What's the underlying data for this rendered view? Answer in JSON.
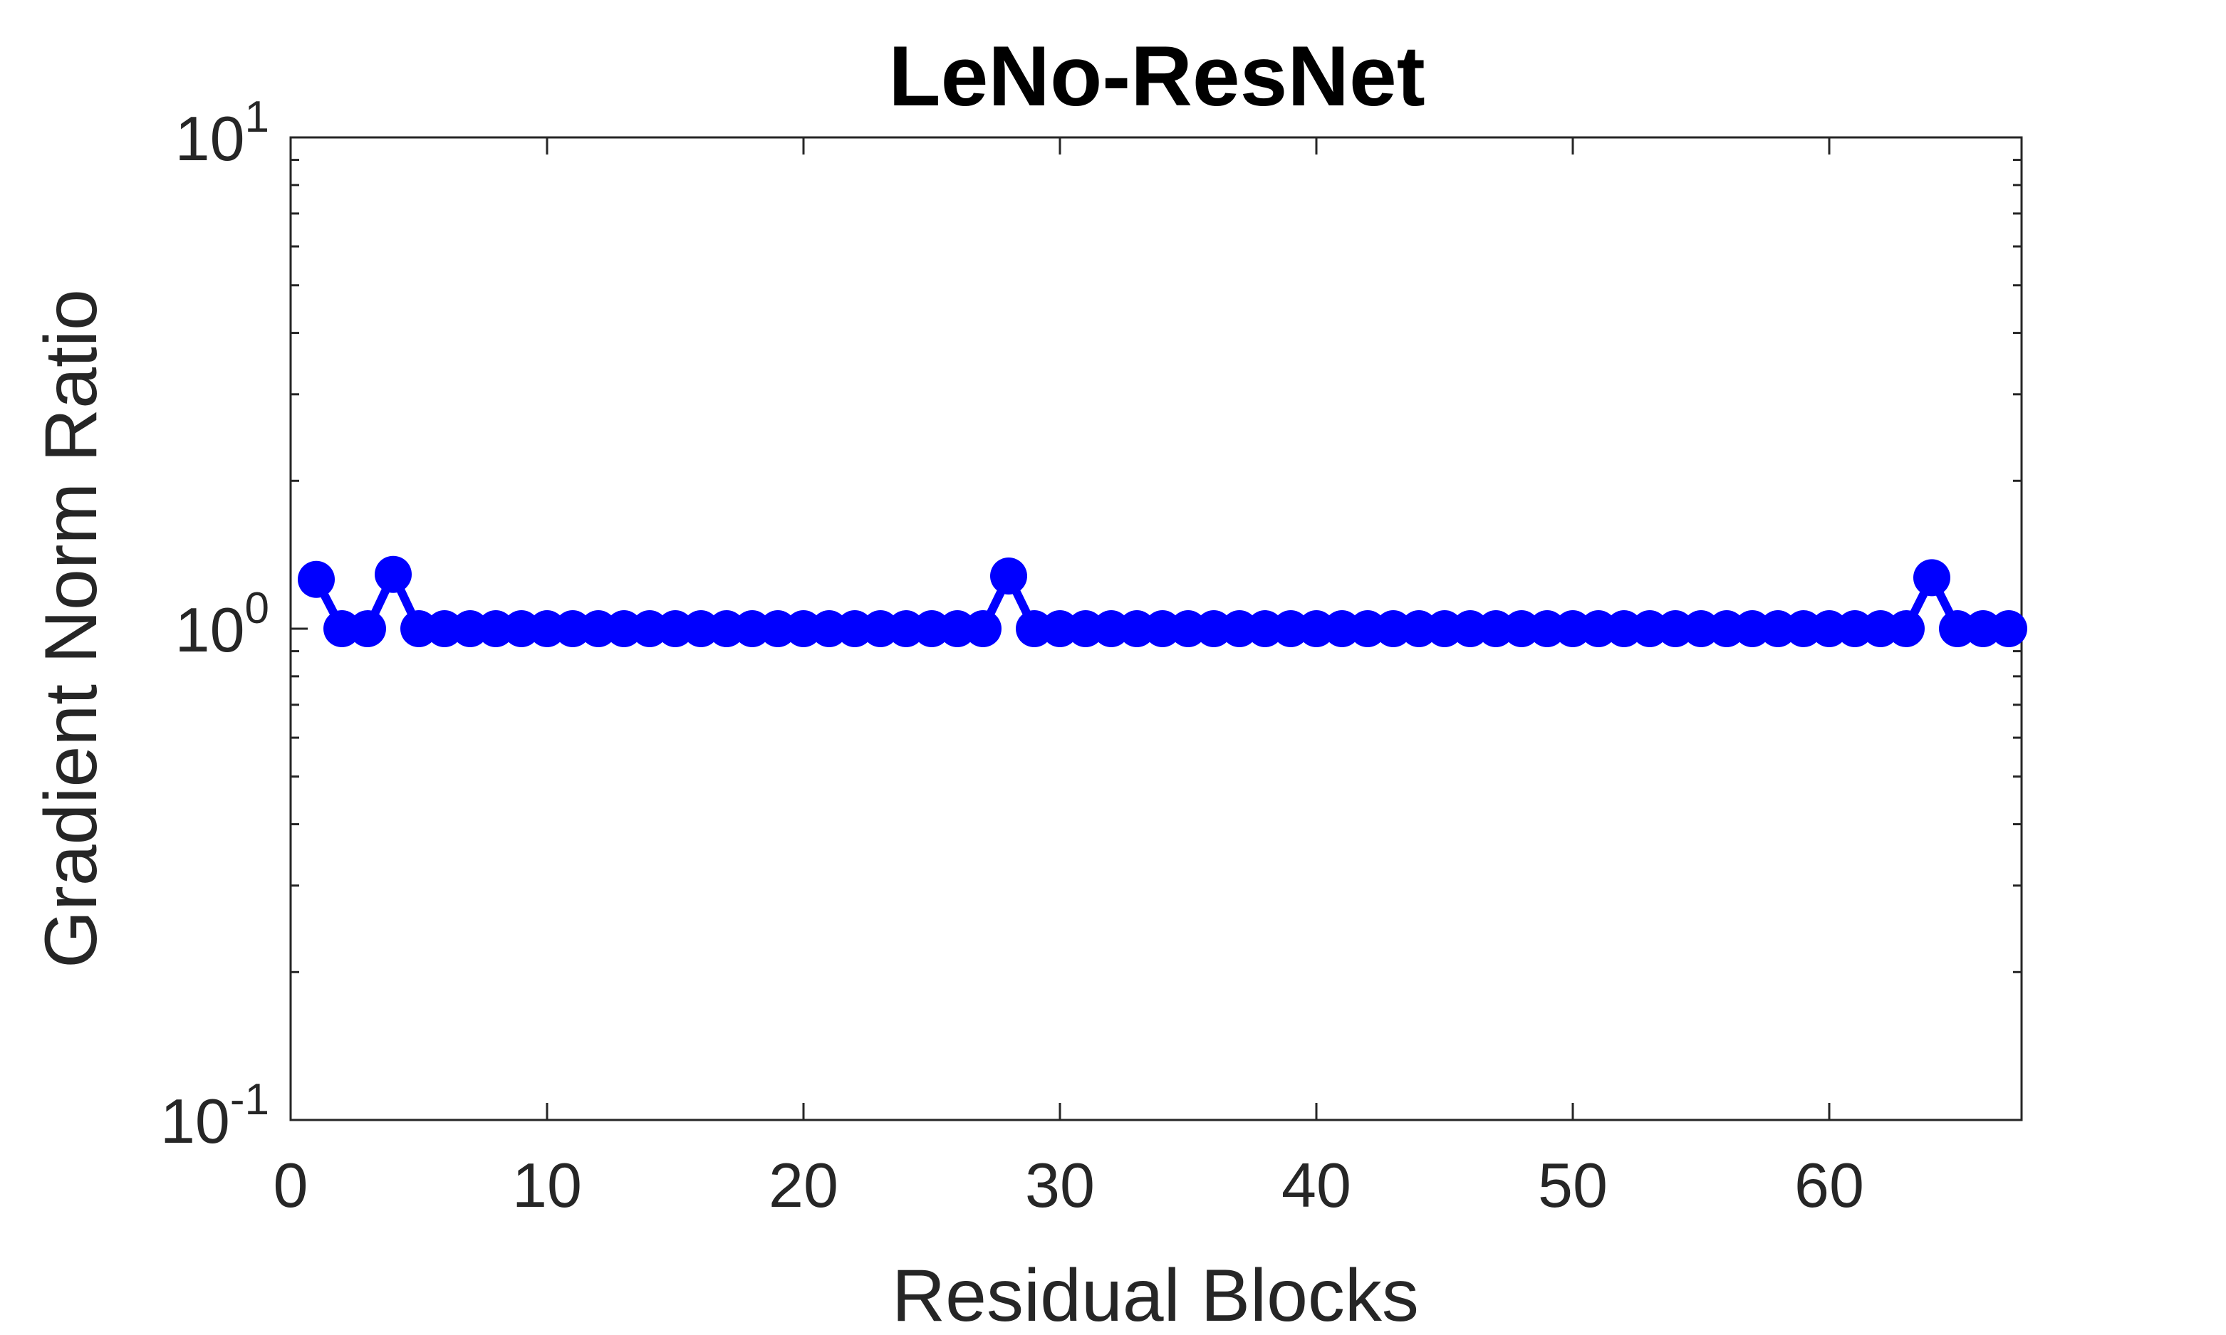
{
  "chart_data": {
    "type": "line",
    "title": "LeNo-ResNet",
    "xlabel": "Residual Blocks",
    "ylabel": "Gradient Norm Ratio",
    "xlim": [
      0,
      67.5
    ],
    "ylim": [
      0.1,
      10
    ],
    "yscale": "log",
    "x_ticks": [
      0,
      10,
      20,
      30,
      40,
      50,
      60
    ],
    "y_ticks": [
      {
        "value": 10,
        "base": "10",
        "exponent": "1"
      },
      {
        "value": 1,
        "base": "10",
        "exponent": "0"
      },
      {
        "value": 0.1,
        "base": "10",
        "exponent": "-1"
      }
    ],
    "grid": false,
    "series": [
      {
        "color": "#0000ff",
        "marker": "circle",
        "x": [
          1,
          2,
          3,
          4,
          5,
          6,
          7,
          8,
          9,
          10,
          11,
          12,
          13,
          14,
          15,
          16,
          17,
          18,
          19,
          20,
          21,
          22,
          23,
          24,
          25,
          26,
          27,
          28,
          29,
          30,
          31,
          32,
          33,
          34,
          35,
          36,
          37,
          38,
          39,
          40,
          41,
          42,
          43,
          44,
          45,
          46,
          47,
          48,
          49,
          50,
          51,
          52,
          53,
          54,
          55,
          56,
          57,
          58,
          59,
          60,
          61,
          62,
          63,
          64,
          65,
          66,
          67
        ],
        "values": [
          1.26,
          1.0,
          1.0,
          1.29,
          1.0,
          1.0,
          1.0,
          1.0,
          1.0,
          1.0,
          1.0,
          1.0,
          1.0,
          1.0,
          1.0,
          1.0,
          1.0,
          1.0,
          1.0,
          1.0,
          1.0,
          1.0,
          1.0,
          1.0,
          1.0,
          1.0,
          1.0,
          1.28,
          1.0,
          1.0,
          1.0,
          1.0,
          1.0,
          1.0,
          1.0,
          1.0,
          1.0,
          1.0,
          1.0,
          1.0,
          1.0,
          1.0,
          1.0,
          1.0,
          1.0,
          1.0,
          1.0,
          1.0,
          1.0,
          1.0,
          1.0,
          1.0,
          1.0,
          1.0,
          1.0,
          1.0,
          1.0,
          1.0,
          1.0,
          1.0,
          1.0,
          1.0,
          1.0,
          1.27,
          1.0,
          1.0,
          1.0
        ]
      }
    ]
  }
}
